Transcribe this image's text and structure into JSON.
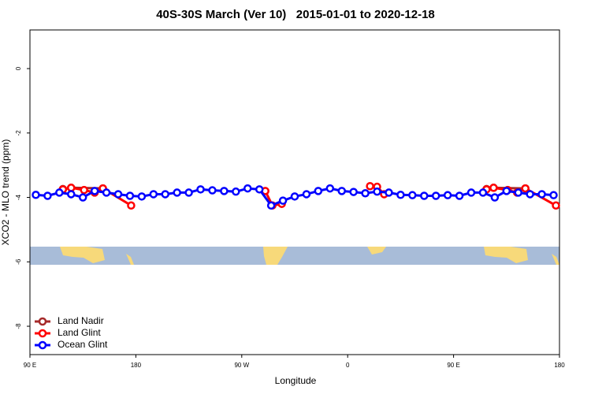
{
  "chart_data": {
    "type": "line",
    "title": "40S-30S March (Ver 10)   2015-01-01 to 2020-12-18",
    "x_label": "Longitude",
    "y_label": "XCO2 - MLO trend (ppm)",
    "xlim": [
      90,
      540
    ],
    "ylim": [
      -8.88,
      1.2
    ],
    "xticks": [
      {
        "value": 90,
        "label": "90 E"
      },
      {
        "value": 180,
        "label": "180"
      },
      {
        "value": 270,
        "label": "90 W"
      },
      {
        "value": 360,
        "label": "0"
      },
      {
        "value": 450,
        "label": "90 E"
      },
      {
        "value": 540,
        "label": "180"
      }
    ],
    "yticks": [
      0,
      -2,
      -4,
      -6,
      -8
    ],
    "legend": "bottom-left",
    "series": [
      {
        "name": "Land Nadir",
        "color": "#a52a2a",
        "x": [
          118,
          125,
          152,
          null,
          478,
          484,
          511
        ],
        "values": [
          -3.74,
          -3.7,
          -3.72,
          null,
          -3.74,
          -3.7,
          -3.72
        ]
      },
      {
        "name": "Land Glint",
        "color": "#ff0000",
        "x": [
          118,
          125,
          136,
          145,
          152,
          176,
          null,
          290,
          296,
          304,
          null,
          379,
          385,
          391,
          null,
          478,
          484,
          496,
          504,
          511,
          537
        ],
        "values": [
          -3.75,
          -3.7,
          -3.77,
          -3.85,
          -3.72,
          -4.25,
          null,
          -3.8,
          -4.25,
          -4.2,
          null,
          -3.65,
          -3.67,
          -3.9,
          null,
          -3.75,
          -3.7,
          -3.77,
          -3.85,
          -3.72,
          -4.25
        ]
      },
      {
        "name": "Ocean Glint",
        "color": "#0000ff",
        "x": [
          95,
          105,
          115,
          125,
          135,
          145,
          155,
          165,
          175,
          185,
          195,
          205,
          215,
          225,
          235,
          245,
          255,
          265,
          275,
          285,
          295,
          305,
          315,
          325,
          335,
          345,
          355,
          365,
          375,
          385,
          395,
          405,
          415,
          425,
          435,
          445,
          455,
          465,
          475,
          485,
          495,
          505,
          515,
          525,
          535
        ],
        "values": [
          -3.92,
          -3.95,
          -3.85,
          -3.9,
          -4.0,
          -3.8,
          -3.85,
          -3.9,
          -3.95,
          -3.97,
          -3.9,
          -3.9,
          -3.85,
          -3.85,
          -3.75,
          -3.78,
          -3.8,
          -3.82,
          -3.72,
          -3.75,
          -4.25,
          -4.1,
          -3.97,
          -3.9,
          -3.8,
          -3.72,
          -3.8,
          -3.83,
          -3.87,
          -3.82,
          -3.85,
          -3.92,
          -3.93,
          -3.95,
          -3.95,
          -3.93,
          -3.95,
          -3.85,
          -3.85,
          -4.0,
          -3.8,
          -3.85,
          -3.9,
          -3.9,
          -3.93
        ]
      }
    ]
  }
}
